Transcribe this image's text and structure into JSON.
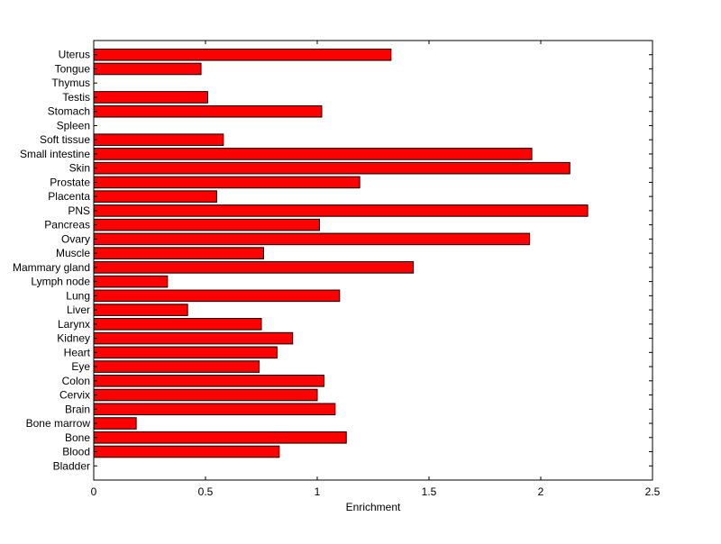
{
  "chart_data": {
    "type": "bar",
    "orientation": "horizontal",
    "xlabel": "Enrichment",
    "ylabel": "",
    "xlim": [
      0,
      2.5
    ],
    "xticks": [
      0,
      0.5,
      1,
      1.5,
      2,
      2.5
    ],
    "xtick_labels": [
      "0",
      "0.5",
      "1",
      "1.5",
      "2",
      "2.5"
    ],
    "grid": false,
    "bar_color": "#ff0000",
    "edge_color": "#000000",
    "categories": [
      "Uterus",
      "Tongue",
      "Thymus",
      "Testis",
      "Stomach",
      "Spleen",
      "Soft tissue",
      "Small intestine",
      "Skin",
      "Prostate",
      "Placenta",
      "PNS",
      "Pancreas",
      "Ovary",
      "Muscle",
      "Mammary gland",
      "Lymph node",
      "Lung",
      "Liver",
      "Larynx",
      "Kidney",
      "Heart",
      "Eye",
      "Colon",
      "Cervix",
      "Brain",
      "Bone marrow",
      "Bone",
      "Blood",
      "Bladder"
    ],
    "values": [
      1.33,
      0.48,
      0,
      0.51,
      1.02,
      0,
      0.58,
      1.96,
      2.13,
      1.19,
      0.55,
      2.21,
      1.01,
      1.95,
      0.76,
      1.43,
      0.33,
      1.1,
      0.42,
      0.75,
      0.89,
      0.82,
      0.74,
      1.03,
      1.0,
      1.08,
      0.19,
      1.13,
      0.83,
      0
    ]
  }
}
